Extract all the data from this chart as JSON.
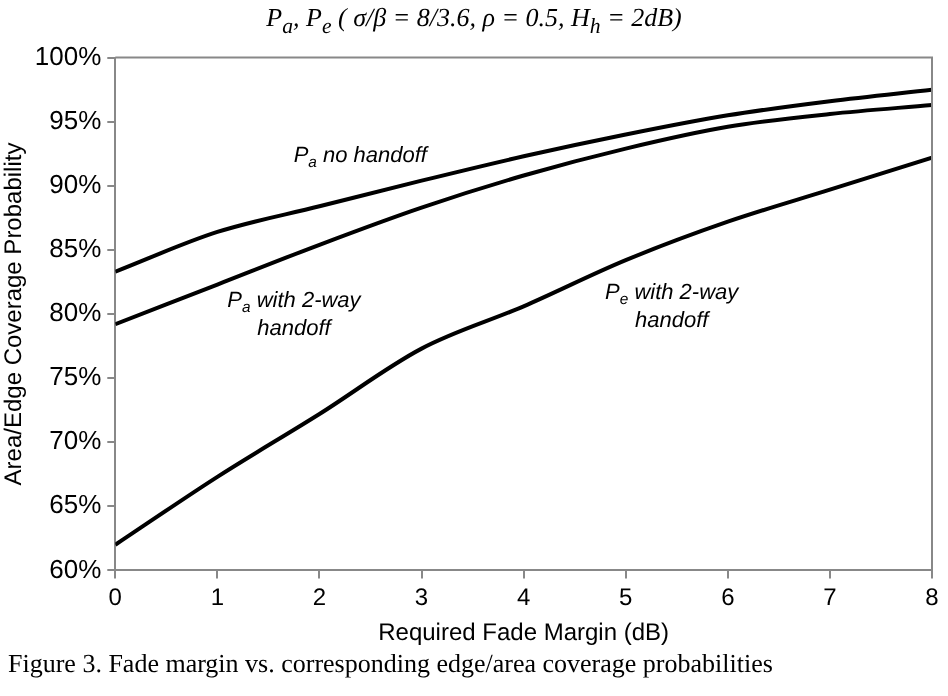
{
  "chart_data": {
    "type": "line",
    "title": "P$_{a}$, P$_{e}$ ( σ/β = 8/3.6,  ρ = 0.5, H$_{h}$ = 2dB)",
    "xlabel": "Required Fade Margin (dB)",
    "ylabel": "Area/Edge Coverage Probability",
    "x": [
      0,
      1,
      2,
      3,
      4,
      5,
      6,
      7,
      8
    ],
    "series": [
      {
        "name": "P$_{a}$ no handoff",
        "color": "#000000",
        "values": [
          83.3,
          86.4,
          88.4,
          90.4,
          92.3,
          94.0,
          95.5,
          96.6,
          97.5
        ]
      },
      {
        "name": "P$_{a}$ with 2-way\nhandoff",
        "color": "#000000",
        "values": [
          79.2,
          82.3,
          85.4,
          88.3,
          90.8,
          92.9,
          94.6,
          95.6,
          96.3
        ]
      },
      {
        "name": "P$_{e}$ with 2-way\nhandoff",
        "color": "#000000",
        "values": [
          62.0,
          67.3,
          72.2,
          77.3,
          80.6,
          84.2,
          87.2,
          89.7,
          92.2
        ]
      }
    ],
    "xlim": [
      0,
      8
    ],
    "xticks": [
      0,
      1,
      2,
      3,
      4,
      5,
      6,
      7,
      8
    ],
    "ylim": [
      60,
      100
    ],
    "yticks": [
      {
        "value": 60,
        "label": "60%"
      },
      {
        "value": 65,
        "label": "65%"
      },
      {
        "value": 70,
        "label": "70%"
      },
      {
        "value": 75,
        "label": "75%"
      },
      {
        "value": 80,
        "label": "80%"
      },
      {
        "value": 85,
        "label": "85%"
      },
      {
        "value": 90,
        "label": "90%"
      },
      {
        "value": 95,
        "label": "95%"
      },
      {
        "value": 100,
        "label": "100%"
      }
    ],
    "grid": false,
    "legend": false,
    "marker": "none",
    "line_style": "solid",
    "annotations": [
      "Figure 3.   Fade margin vs. corresponding edge/area coverage probabilities"
    ]
  }
}
